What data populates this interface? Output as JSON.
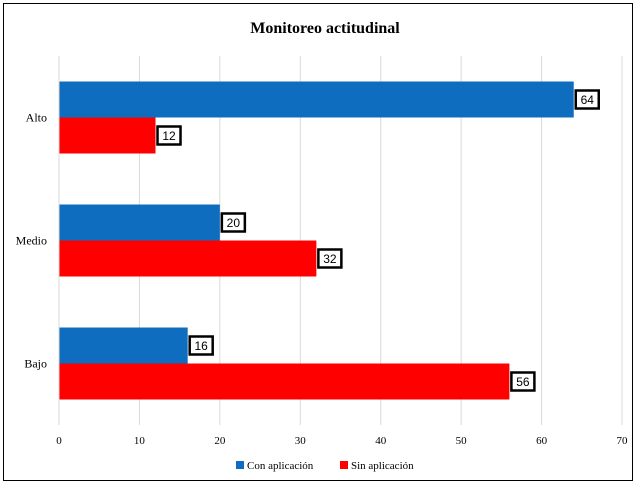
{
  "chart_data": {
    "type": "bar",
    "orientation": "horizontal",
    "title": "Monitoreo actitudinal",
    "categories": [
      "Alto",
      "Medio",
      "Bajo"
    ],
    "series": [
      {
        "name": "Con aplicación",
        "values": [
          64,
          20,
          16
        ],
        "color": "#0f6dbf"
      },
      {
        "name": "Sin aplicación",
        "values": [
          12,
          32,
          56
        ],
        "color": "#ff0000"
      }
    ],
    "xlim": [
      0,
      70
    ],
    "xticks": [
      0,
      10,
      20,
      30,
      40,
      50,
      60,
      70
    ],
    "grid": true,
    "legend": "bottom"
  }
}
